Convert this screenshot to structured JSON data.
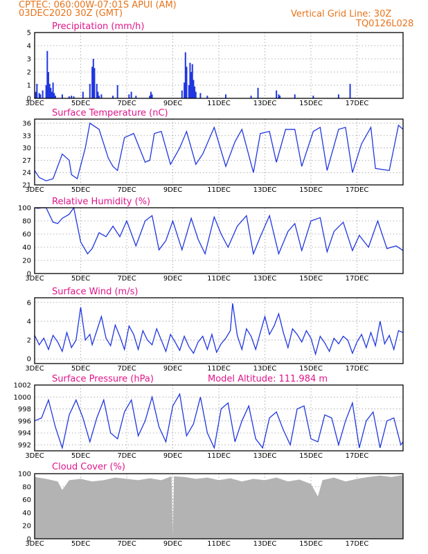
{
  "header": {
    "line1": "CPTEC:   060:00W-07:01S   APUI (AM)",
    "line2": "03DEC2020 30Z (GMT)",
    "right1": "Vertical Grid Line: 30Z",
    "right2": "TQ0126L028"
  },
  "colors": {
    "series": "#1f36e0",
    "title": "#e0158a",
    "header": "#e8731a",
    "cloud": "#b3b3b3"
  },
  "x_ticks": [
    "3DEC",
    "5DEC",
    "7DEC",
    "9DEC",
    "11DEC",
    "13DEC",
    "15DEC",
    "17DEC"
  ],
  "chart_data": [
    {
      "type": "bar",
      "title": "Precipitation (mm/h)",
      "xlim": [
        "03DEC2020",
        "19DEC2020"
      ],
      "ylim": [
        0,
        5
      ],
      "yticks": [
        "0",
        "1",
        "2",
        "3",
        "4",
        "5"
      ],
      "x_day": [
        0.05,
        0.1,
        0.2,
        0.25,
        0.35,
        0.5,
        0.55,
        0.6,
        0.65,
        0.7,
        0.75,
        0.8,
        0.85,
        0.9,
        1.2,
        1.5,
        1.6,
        1.7,
        2.1,
        2.4,
        2.5,
        2.55,
        2.6,
        2.7,
        2.75,
        2.8,
        2.9,
        3.4,
        3.6,
        4.1,
        4.2,
        4.4,
        5.0,
        5.05,
        5.1,
        6.4,
        6.5,
        6.55,
        6.6,
        6.7,
        6.75,
        6.8,
        6.85,
        6.9,
        6.95,
        7.0,
        7.2,
        7.5,
        8.3,
        9.4,
        9.7,
        10.5,
        10.6,
        10.65,
        11.3,
        12.1,
        13.2,
        13.7
      ],
      "values": [
        0.5,
        1.1,
        0.4,
        0.3,
        0.6,
        1.0,
        3.6,
        2.0,
        1.1,
        0.8,
        0.5,
        1.2,
        0.4,
        0.2,
        0.3,
        0.15,
        0.2,
        0.15,
        0.5,
        1.1,
        2.4,
        3.0,
        2.3,
        1.1,
        0.5,
        0.2,
        0.3,
        0.2,
        1.0,
        0.3,
        0.5,
        0.2,
        0.2,
        0.5,
        0.3,
        0.6,
        1.2,
        3.5,
        2.4,
        1.0,
        2.7,
        2.0,
        2.6,
        1.4,
        0.9,
        0.5,
        0.4,
        0.2,
        0.3,
        0.2,
        0.8,
        0.6,
        0.3,
        0.2,
        0.3,
        0.2,
        0.3,
        1.1
      ]
    },
    {
      "type": "line",
      "title": "Surface Temperature (nC)",
      "xlim": [
        "03DEC2020",
        "19DEC2020"
      ],
      "ylim": [
        21,
        37
      ],
      "yticks": [
        "21",
        "24",
        "27",
        "30",
        "33",
        "36"
      ],
      "x_day": [
        0,
        0.2,
        0.5,
        0.8,
        1.2,
        1.5,
        1.6,
        1.85,
        2.2,
        2.4,
        2.8,
        3.2,
        3.4,
        3.6,
        3.9,
        4.3,
        4.8,
        5.0,
        5.2,
        5.5,
        5.9,
        6.3,
        6.6,
        7.0,
        7.3,
        7.8,
        8.3,
        8.7,
        9.0,
        9.5,
        9.8,
        10.2,
        10.5,
        10.9,
        11.3,
        11.6,
        12.1,
        12.4,
        12.7,
        13.2,
        13.5,
        13.8,
        14.2,
        14.6,
        14.8,
        15.4,
        15.8,
        16.0
      ],
      "values": [
        24.5,
        22.8,
        22.0,
        22.5,
        28.5,
        27.0,
        23.5,
        22.5,
        30.0,
        36.0,
        34.5,
        27.5,
        25.5,
        24.5,
        32.5,
        33.5,
        26.5,
        27.0,
        33.5,
        34.0,
        26.0,
        30.0,
        34.0,
        26.0,
        28.5,
        35.0,
        25.5,
        31.5,
        34.5,
        24.0,
        33.5,
        34.0,
        26.5,
        34.5,
        34.5,
        25.5,
        34.0,
        35.0,
        24.5,
        34.5,
        35.0,
        24.0,
        31.0,
        35.0,
        25.0,
        24.5,
        35.5,
        34.5
      ]
    },
    {
      "type": "line",
      "title": "Relative Humidity (%)",
      "xlim": [
        "03DEC2020",
        "19DEC2020"
      ],
      "ylim": [
        0,
        100
      ],
      "yticks": [
        "0",
        "20",
        "40",
        "60",
        "80",
        "100"
      ],
      "x_day": [
        0,
        0.15,
        0.3,
        0.5,
        0.8,
        1.0,
        1.2,
        1.5,
        1.7,
        2.0,
        2.3,
        2.5,
        2.8,
        3.1,
        3.4,
        3.7,
        4.0,
        4.4,
        4.8,
        5.1,
        5.4,
        5.7,
        6.0,
        6.4,
        6.8,
        7.1,
        7.4,
        7.8,
        8.1,
        8.4,
        8.8,
        9.2,
        9.5,
        9.8,
        10.2,
        10.6,
        11.0,
        11.3,
        11.6,
        12.0,
        12.4,
        12.7,
        13.0,
        13.4,
        13.8,
        14.1,
        14.5,
        14.9,
        15.3,
        15.7,
        16.0
      ],
      "values": [
        100,
        99,
        100,
        100,
        78,
        76,
        84,
        90,
        100,
        48,
        30,
        38,
        62,
        56,
        72,
        56,
        80,
        42,
        80,
        88,
        36,
        50,
        80,
        36,
        84,
        52,
        30,
        86,
        60,
        40,
        72,
        88,
        30,
        56,
        88,
        30,
        64,
        76,
        35,
        80,
        85,
        33,
        64,
        78,
        35,
        58,
        40,
        80,
        38,
        42,
        35
      ]
    },
    {
      "type": "line",
      "title": "Surface Wind (m/s)",
      "xlim": [
        "03DEC2020",
        "19DEC2020"
      ],
      "ylim": [
        -0.5,
        6.5
      ],
      "yticks": [
        "0",
        "2",
        "4",
        "6"
      ],
      "x_day": [
        0,
        0.2,
        0.4,
        0.6,
        0.8,
        1.0,
        1.2,
        1.4,
        1.6,
        1.8,
        2.0,
        2.2,
        2.4,
        2.5,
        2.7,
        2.9,
        3.1,
        3.3,
        3.5,
        3.7,
        3.9,
        4.1,
        4.3,
        4.5,
        4.7,
        4.9,
        5.1,
        5.3,
        5.5,
        5.7,
        5.9,
        6.1,
        6.3,
        6.5,
        6.7,
        6.9,
        7.1,
        7.3,
        7.5,
        7.7,
        7.9,
        8.1,
        8.3,
        8.5,
        8.6,
        8.8,
        9.0,
        9.2,
        9.4,
        9.6,
        9.8,
        10.0,
        10.2,
        10.4,
        10.6,
        10.8,
        11.0,
        11.2,
        11.4,
        11.6,
        11.8,
        12.0,
        12.2,
        12.4,
        12.6,
        12.8,
        13.0,
        13.2,
        13.4,
        13.6,
        13.8,
        14.0,
        14.2,
        14.4,
        14.6,
        14.8,
        15.0,
        15.2,
        15.4,
        15.6,
        15.8,
        16.0
      ],
      "values": [
        2.5,
        1.5,
        2.2,
        1.0,
        2.5,
        1.8,
        0.8,
        2.8,
        1.2,
        2.0,
        5.5,
        2.0,
        2.6,
        1.5,
        3.0,
        4.5,
        2.2,
        1.4,
        3.6,
        2.4,
        1.0,
        3.5,
        2.6,
        1.0,
        3.0,
        2.0,
        1.5,
        3.2,
        2.0,
        0.8,
        2.6,
        1.8,
        0.9,
        2.4,
        1.3,
        0.6,
        1.8,
        2.4,
        1.0,
        2.6,
        0.7,
        1.6,
        2.2,
        3.0,
        5.9,
        2.5,
        1.0,
        3.2,
        2.4,
        1.0,
        2.8,
        4.5,
        2.6,
        3.5,
        4.8,
        2.8,
        1.2,
        3.2,
        2.6,
        1.8,
        3.0,
        2.2,
        0.5,
        2.4,
        1.7,
        0.8,
        2.2,
        1.6,
        2.4,
        2.0,
        0.6,
        1.8,
        2.6,
        1.2,
        2.8,
        1.4,
        4.0,
        1.6,
        2.5,
        1.0,
        3.0,
        2.8
      ]
    },
    {
      "type": "line",
      "title": "Surface Pressure (hPa)",
      "annotation": "Model Altitude: 111.984 m",
      "xlim": [
        "03DEC2020",
        "19DEC2020"
      ],
      "ylim": [
        991,
        1002
      ],
      "yticks": [
        "992",
        "994",
        "996",
        "998",
        "1000",
        "1002"
      ],
      "x_day": [
        0,
        0.3,
        0.6,
        0.9,
        1.2,
        1.5,
        1.8,
        2.1,
        2.4,
        2.7,
        3.0,
        3.3,
        3.6,
        3.9,
        4.2,
        4.5,
        4.8,
        5.1,
        5.4,
        5.7,
        6.0,
        6.3,
        6.6,
        6.9,
        7.2,
        7.5,
        7.8,
        8.1,
        8.4,
        8.7,
        9.0,
        9.3,
        9.6,
        9.9,
        10.2,
        10.5,
        10.8,
        11.1,
        11.4,
        11.7,
        12.0,
        12.3,
        12.6,
        12.9,
        13.2,
        13.5,
        13.8,
        14.1,
        14.4,
        14.7,
        15.0,
        15.3,
        15.6,
        15.9,
        16.0
      ],
      "values": [
        996,
        996.5,
        999.5,
        995,
        991.5,
        997,
        999.5,
        996.5,
        992.5,
        996.5,
        999.5,
        994,
        993,
        997.5,
        999.5,
        993.5,
        996,
        1000,
        995,
        992.5,
        998.5,
        1000.5,
        993.5,
        995.5,
        1000,
        994,
        991.5,
        998,
        999,
        992.5,
        996,
        998.5,
        993,
        991.5,
        996.5,
        997.5,
        994.5,
        992,
        998,
        998.5,
        993,
        992.5,
        997,
        996.5,
        992,
        996,
        999,
        991.5,
        996,
        997.5,
        991.5,
        996,
        996.5,
        992,
        992.5
      ]
    },
    {
      "type": "area",
      "title": "Cloud Cover (%)",
      "xlim": [
        "03DEC2020",
        "19DEC2020"
      ],
      "ylim": [
        0,
        100
      ],
      "yticks": [
        "0",
        "20",
        "40",
        "60",
        "80",
        "100"
      ],
      "x_day": [
        0,
        0.5,
        1.0,
        1.2,
        1.5,
        2.0,
        2.5,
        3.0,
        3.5,
        4.0,
        4.5,
        5.0,
        5.5,
        5.95,
        6.0,
        6.05,
        6.5,
        7.0,
        7.5,
        8.0,
        8.5,
        9.0,
        9.5,
        10.0,
        10.5,
        11.0,
        11.5,
        12.0,
        12.3,
        12.5,
        13.0,
        13.5,
        14.0,
        14.5,
        15.0,
        15.5,
        16.0
      ],
      "values": [
        95,
        92,
        88,
        75,
        90,
        92,
        88,
        90,
        94,
        92,
        90,
        93,
        90,
        96,
        5,
        96,
        95,
        92,
        94,
        90,
        93,
        88,
        92,
        90,
        94,
        88,
        91,
        84,
        65,
        90,
        94,
        88,
        92,
        95,
        97,
        95,
        98
      ]
    }
  ]
}
